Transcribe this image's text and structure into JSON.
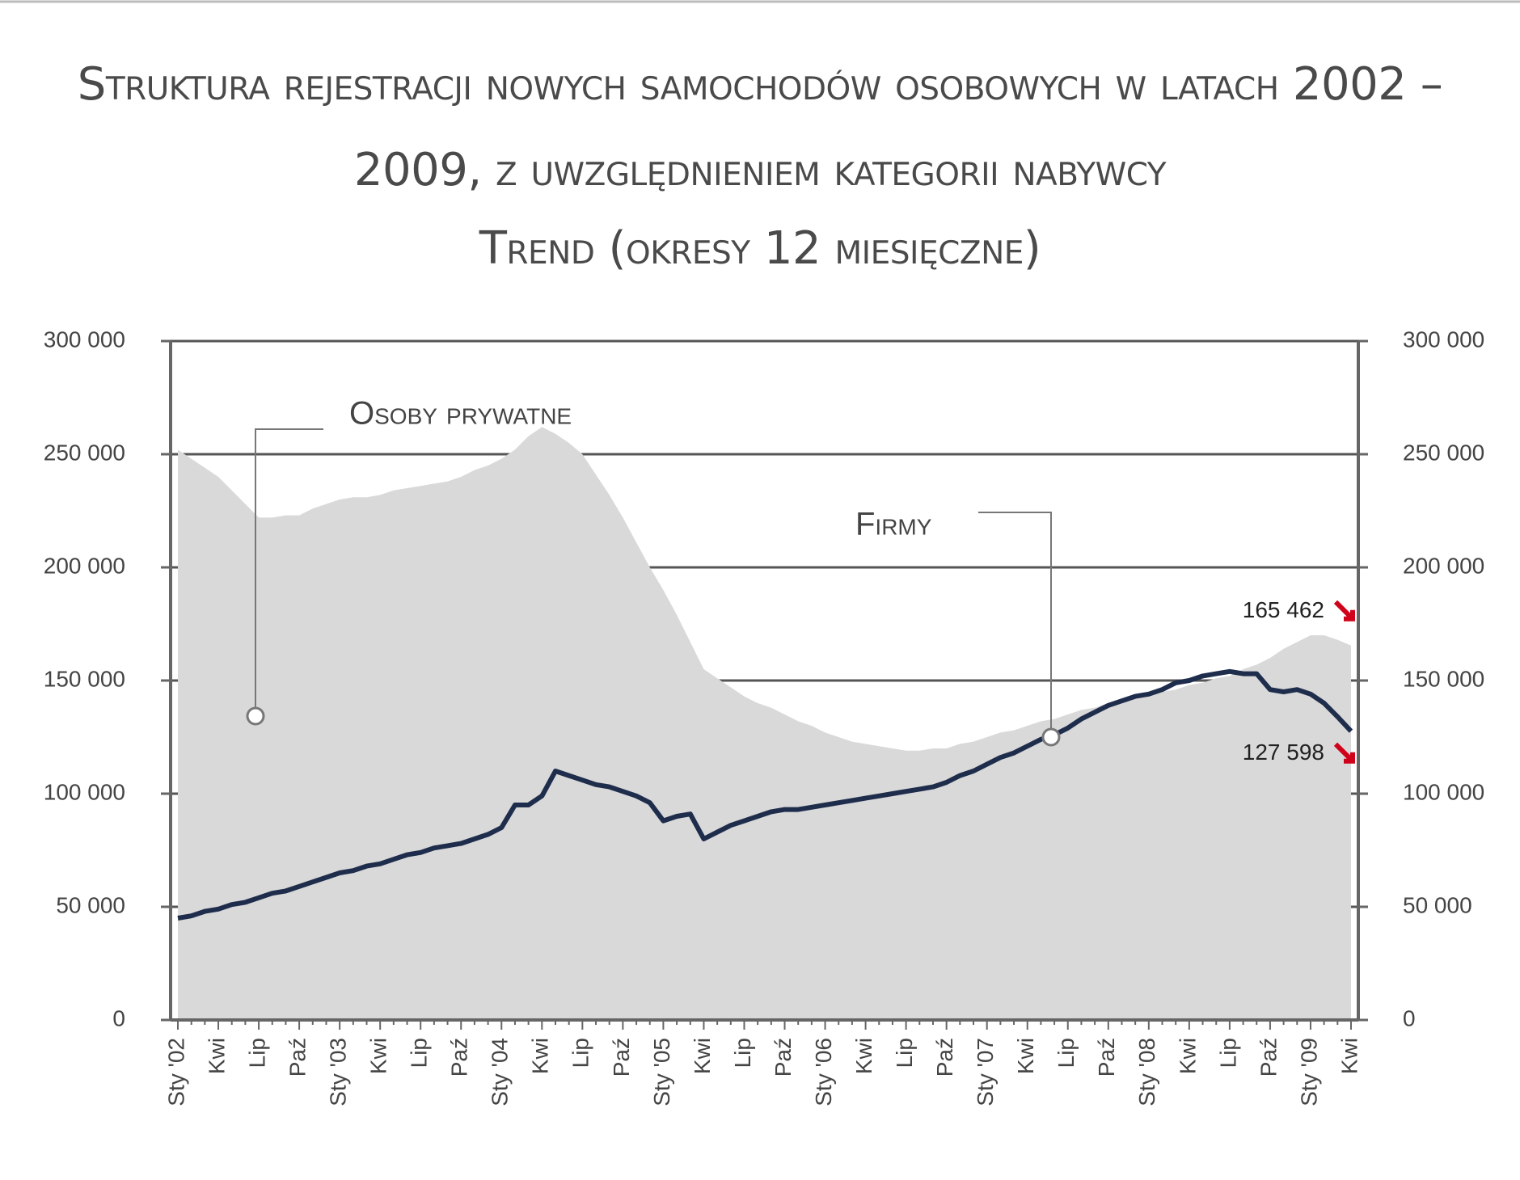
{
  "chart_data": {
    "type": "area-line",
    "title": "Struktura rejestracji nowych samochodów osobowych w latach 2002 – 2009, z uwzględnieniem kategorii nabywcy",
    "subtitle": "Trend (okresy 12 miesięczne)",
    "categories": [
      "Sty '02",
      null,
      null,
      "Kwi",
      null,
      null,
      "Lip",
      null,
      null,
      "Paź",
      null,
      null,
      "Sty '03",
      null,
      null,
      "Kwi",
      null,
      null,
      "Lip",
      null,
      null,
      "Paź",
      null,
      null,
      "Sty '04",
      null,
      null,
      "Kwi",
      null,
      null,
      "Lip",
      null,
      null,
      "Paź",
      null,
      null,
      "Sty '05",
      null,
      null,
      "Kwi",
      null,
      null,
      "Lip",
      null,
      null,
      "Paź",
      null,
      null,
      "Sty '06",
      null,
      null,
      "Kwi",
      null,
      null,
      "Lip",
      null,
      null,
      "Paź",
      null,
      null,
      "Sty '07",
      null,
      null,
      "Kwi",
      null,
      null,
      "Lip",
      null,
      null,
      "Paź",
      null,
      null,
      "Sty '08",
      null,
      null,
      "Kwi",
      null,
      null,
      "Lip",
      null,
      null,
      "Paź",
      null,
      null,
      "Sty '09",
      null,
      null,
      "Kwi"
    ],
    "series": [
      {
        "name": "Osoby prywatne",
        "type": "area",
        "color": "#d9d9d9",
        "values": [
          252000,
          248000,
          244000,
          240000,
          234000,
          228000,
          222000,
          222000,
          223000,
          223000,
          226000,
          228000,
          230000,
          231000,
          231000,
          232000,
          234000,
          235000,
          236000,
          237000,
          238000,
          240000,
          243000,
          245000,
          248000,
          252000,
          258000,
          262000,
          259000,
          255000,
          250000,
          241000,
          232000,
          222000,
          211000,
          200000,
          190000,
          179000,
          167000,
          155000,
          151000,
          147000,
          143000,
          140000,
          138000,
          135000,
          132000,
          130000,
          127000,
          125000,
          123000,
          122000,
          121000,
          120000,
          119000,
          119000,
          120000,
          120000,
          122000,
          123000,
          125000,
          127000,
          128000,
          130000,
          132000,
          133000,
          135000,
          137000,
          138000,
          140000,
          141000,
          142000,
          143000,
          145000,
          146000,
          148000,
          149000,
          151000,
          152000,
          155000,
          157000,
          160000,
          164000,
          167000,
          170000,
          170000,
          168000,
          165462
        ],
        "value_labels": [
          null,
          null,
          null,
          null,
          null,
          null,
          null,
          null,
          null,
          null,
          null,
          null,
          null,
          null,
          null,
          null,
          null,
          null,
          null,
          null,
          null,
          null,
          null,
          null,
          null,
          null,
          null,
          null,
          null,
          null,
          null,
          null,
          null,
          null,
          null,
          null,
          null,
          null,
          null,
          null,
          null,
          null,
          null,
          null,
          null,
          null,
          null,
          null,
          null,
          null,
          null,
          null,
          null,
          null,
          null,
          null,
          null,
          null,
          null,
          null,
          null,
          null,
          null,
          null,
          null,
          null,
          null,
          null,
          null,
          null,
          null,
          null,
          null,
          null,
          null,
          null,
          null,
          null,
          null,
          null,
          null,
          null,
          null,
          null,
          null,
          null,
          null,
          "165 462"
        ]
      },
      {
        "name": "Firmy",
        "type": "line",
        "color": "#1f2d4d",
        "values": [
          45000,
          46000,
          48000,
          49000,
          51000,
          52000,
          54000,
          56000,
          57000,
          59000,
          61000,
          63000,
          65000,
          66000,
          68000,
          69000,
          71000,
          73000,
          74000,
          76000,
          77000,
          78000,
          80000,
          82000,
          85000,
          95000,
          95000,
          99000,
          110000,
          108000,
          106000,
          104000,
          103000,
          101000,
          99000,
          96000,
          88000,
          90000,
          91000,
          80000,
          83000,
          86000,
          88000,
          90000,
          92000,
          93000,
          93000,
          94000,
          95000,
          96000,
          97000,
          98000,
          99000,
          100000,
          101000,
          102000,
          103000,
          105000,
          108000,
          110000,
          113000,
          116000,
          118000,
          121000,
          124000,
          126000,
          129000,
          133000,
          136000,
          139000,
          141000,
          143000,
          144000,
          146000,
          149000,
          150000,
          152000,
          153000,
          154000,
          153000,
          153000,
          146000,
          145000,
          146000,
          144000,
          140000,
          134000,
          127598
        ],
        "value_labels": [
          null,
          null,
          null,
          null,
          null,
          null,
          null,
          null,
          null,
          null,
          null,
          null,
          null,
          null,
          null,
          null,
          null,
          null,
          null,
          null,
          null,
          null,
          null,
          null,
          null,
          null,
          null,
          null,
          null,
          null,
          null,
          null,
          null,
          null,
          null,
          null,
          null,
          null,
          null,
          null,
          null,
          null,
          null,
          null,
          null,
          null,
          null,
          null,
          null,
          null,
          null,
          null,
          null,
          null,
          null,
          null,
          null,
          null,
          null,
          null,
          null,
          null,
          null,
          null,
          null,
          null,
          null,
          null,
          null,
          null,
          null,
          null,
          null,
          null,
          null,
          null,
          null,
          null,
          null,
          null,
          null,
          null,
          null,
          null,
          null,
          null,
          null,
          "127 598"
        ]
      }
    ],
    "ylim": [
      0,
      300000
    ],
    "yticks": [
      0,
      {
        "value": 50000,
        "label": "50 000"
      },
      {
        "value": 100000,
        "label": "100 000"
      },
      {
        "value": 150000,
        "label": "150 000"
      },
      {
        "value": 200000,
        "label": "200 000"
      },
      {
        "value": 250000,
        "label": "250 000"
      },
      {
        "value": 300000,
        "label": "300 000"
      }
    ],
    "y2lim": [
      0,
      300000
    ],
    "y2ticks": [
      0,
      {
        "value": 50000,
        "label": "50 000"
      },
      {
        "value": 100000,
        "label": "100 000"
      },
      {
        "value": 150000,
        "label": "150 000"
      },
      {
        "value": 200000,
        "label": "200 000"
      },
      {
        "value": 250000,
        "label": "250 000"
      },
      {
        "value": 300000,
        "label": "300 000"
      }
    ],
    "grid": true,
    "annotations": [
      {
        "text": "Osoby prywatne"
      },
      {
        "text": "Firmy"
      }
    ]
  }
}
